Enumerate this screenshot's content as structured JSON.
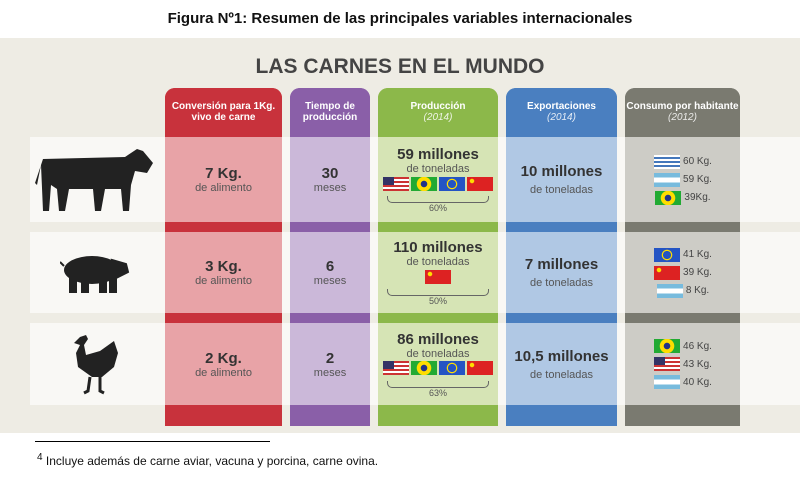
{
  "figure_title": "Figura Nº1: Resumen de las principales variables internacionales",
  "main_title": "LAS CARNES EN EL MUNDO",
  "headers": {
    "conversion": "Conversión para 1Kg. vivo de carne",
    "tiempo": "Tiempo de producción",
    "produccion": "Producción",
    "produccion_year": "(2014)",
    "exportaciones": "Exportaciones",
    "exportaciones_year": "(2014)",
    "consumo": "Consumo por habitante",
    "consumo_year": "(2012)"
  },
  "colors": {
    "conversion": "#c8323c",
    "tiempo": "#8a5fa8",
    "produccion": "#8cb84a",
    "exportaciones": "#4a7fc0",
    "consumo": "#7a7a70"
  },
  "rows": [
    {
      "animal": "cow-icon",
      "conversion": "7 Kg.",
      "conversion_unit": "de alimento",
      "tiempo": "30",
      "tiempo_unit": "meses",
      "produccion": "59 millones",
      "produccion_unit": "de toneladas",
      "produccion_flags": [
        "us",
        "br",
        "eu",
        "cn"
      ],
      "produccion_share": "60%",
      "exportaciones": "10 millones",
      "exportaciones_unit": "de toneladas",
      "consumo": [
        {
          "flag": "uy",
          "value": "60 Kg."
        },
        {
          "flag": "ar",
          "value": "59 Kg."
        },
        {
          "flag": "br",
          "value": "39Kg."
        }
      ]
    },
    {
      "animal": "pig-icon",
      "conversion": "3 Kg.",
      "conversion_unit": "de alimento",
      "tiempo": "6",
      "tiempo_unit": "meses",
      "produccion": "110 millones",
      "produccion_unit": "de toneladas",
      "produccion_flags": [
        "cn"
      ],
      "produccion_share": "50%",
      "exportaciones": "7 millones",
      "exportaciones_unit": "de toneladas",
      "consumo": [
        {
          "flag": "eu",
          "value": "41 Kg."
        },
        {
          "flag": "cn",
          "value": "39 Kg."
        },
        {
          "flag": "ar",
          "value": "8 Kg."
        }
      ]
    },
    {
      "animal": "chicken-icon",
      "conversion": "2 Kg.",
      "conversion_unit": "de alimento",
      "tiempo": "2",
      "tiempo_unit": "meses",
      "produccion": "86 millones",
      "produccion_unit": "de toneladas",
      "produccion_flags": [
        "us",
        "br",
        "eu",
        "cn"
      ],
      "produccion_share": "63%",
      "exportaciones": "10,5 millones",
      "exportaciones_unit": "de toneladas",
      "consumo": [
        {
          "flag": "br",
          "value": "46 Kg."
        },
        {
          "flag": "us",
          "value": "43 Kg."
        },
        {
          "flag": "ar",
          "value": "40 Kg."
        }
      ]
    }
  ],
  "footnote_mark": "4",
  "footnote": "Incluye además de carne aviar, vacuna y porcina, carne ovina."
}
